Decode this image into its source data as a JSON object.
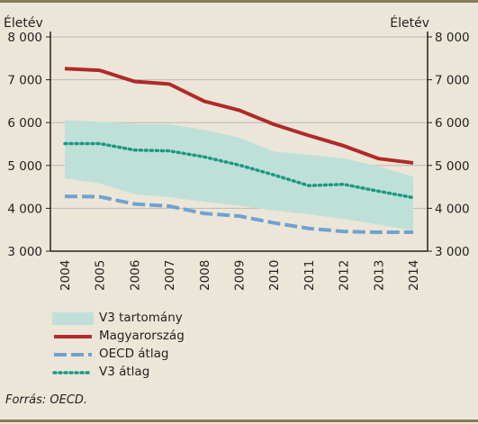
{
  "chart_data": {
    "type": "line",
    "ylabel_left": "Életév",
    "ylabel_right": "Életév",
    "ylim": [
      3000,
      8000
    ],
    "yticks": [
      3000,
      4000,
      5000,
      6000,
      7000,
      8000
    ],
    "ytick_labels": [
      "3 000",
      "4 000",
      "5 000",
      "6 000",
      "7 000",
      "8 000"
    ],
    "categories": [
      "2004",
      "2005",
      "2006",
      "2007",
      "2008",
      "2009",
      "2010",
      "2011",
      "2012",
      "2013",
      "2014"
    ],
    "grid": true,
    "band": {
      "name": "V3 tartomány",
      "color": "#bfe0d8",
      "upper": [
        6060,
        6020,
        5970,
        5960,
        5840,
        5650,
        5330,
        5250,
        5170,
        4980,
        4740
      ],
      "lower": [
        4700,
        4580,
        4330,
        4260,
        4150,
        4060,
        3950,
        3860,
        3750,
        3620,
        3470
      ]
    },
    "series": [
      {
        "name": "Magyarország",
        "color": "#b02a2a",
        "style": "solid",
        "values": [
          7260,
          7220,
          6960,
          6900,
          6500,
          6290,
          5960,
          5700,
          5460,
          5160,
          5060
        ]
      },
      {
        "name": "OECD átlag",
        "color": "#6fa3cf",
        "style": "dashed",
        "values": [
          4280,
          4270,
          4100,
          4050,
          3880,
          3820,
          3660,
          3530,
          3460,
          3440,
          3440
        ]
      },
      {
        "name": "V3 átlag",
        "color": "#1a9a82",
        "style": "dotted",
        "values": [
          5510,
          5510,
          5360,
          5340,
          5200,
          5010,
          4780,
          4530,
          4560,
          4400,
          4250
        ]
      }
    ],
    "legend_placement": "bottom-left"
  },
  "legend": [
    {
      "label": "V3 tartomány",
      "kind": "band",
      "color": "#bfe0d8"
    },
    {
      "label": "Magyarország",
      "kind": "solid",
      "color": "#b02a2a"
    },
    {
      "label": "OECD átlag",
      "kind": "dashed",
      "color": "#6fa3cf"
    },
    {
      "label": "V3 átlag",
      "kind": "dotted",
      "color": "#1a9a82"
    }
  ],
  "source": "Forrás: OECD."
}
